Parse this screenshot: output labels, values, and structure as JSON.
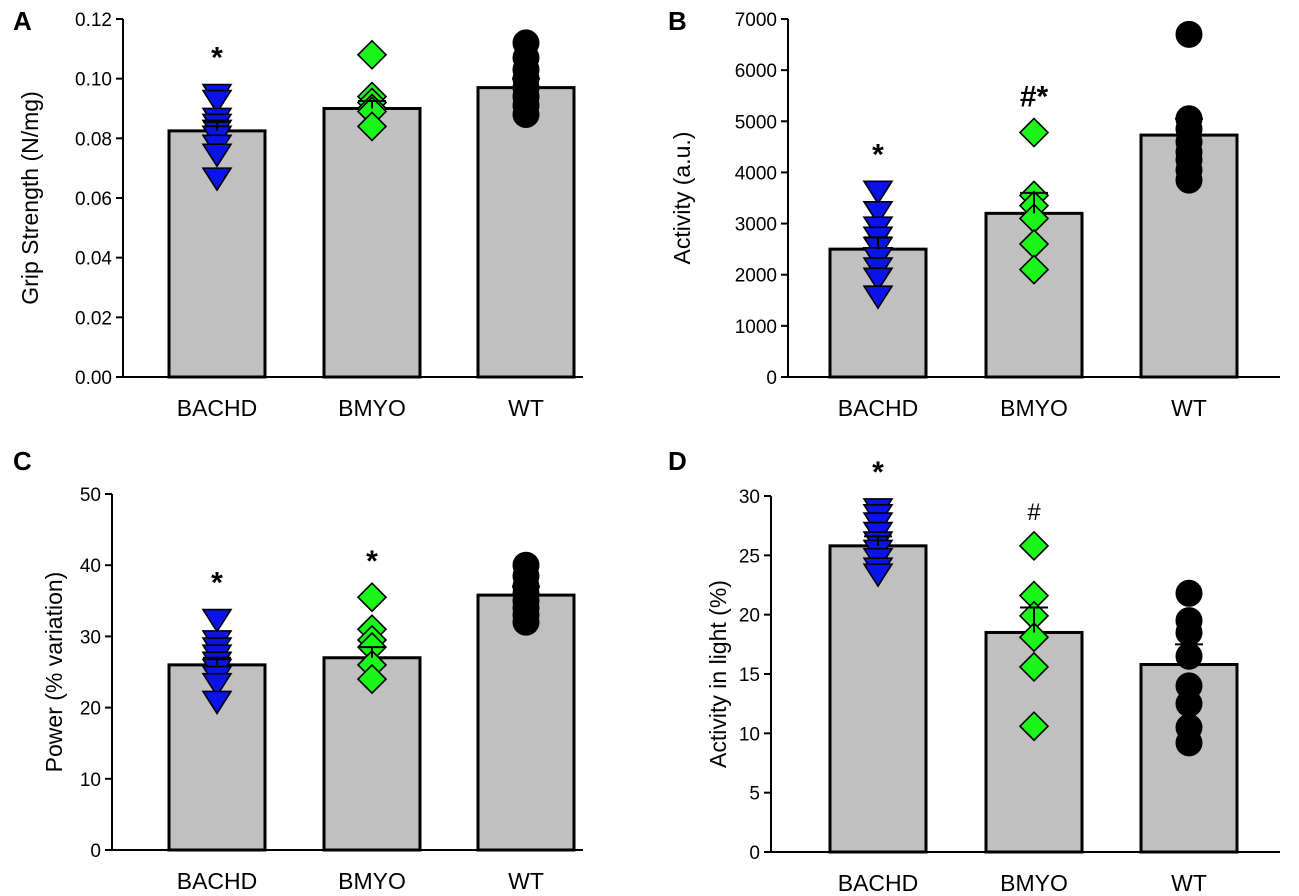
{
  "figure": {
    "categories": [
      "BACHD",
      "BMYO",
      "WT"
    ],
    "colors": {
      "bar": "#c0c0c0",
      "BACHD": "#0a14e6",
      "BMYO": "#1af51a",
      "WT": "#000000"
    }
  },
  "chart_data": [
    {
      "panel": "A",
      "type": "bar",
      "title": "",
      "xlabel": "",
      "ylabel": "Grip Strength (N/mg)",
      "ylim": [
        0,
        0.12
      ],
      "yticks": [
        "0.00",
        "0.02",
        "0.04",
        "0.06",
        "0.08",
        "0.10",
        "0.12"
      ],
      "ytick_values": [
        0,
        0.02,
        0.04,
        0.06,
        0.08,
        0.1,
        0.12
      ],
      "categories": [
        "BACHD",
        "BMYO",
        "WT"
      ],
      "values": [
        0.0825,
        0.09,
        0.097
      ],
      "sem": [
        0.003,
        0.0025,
        0.003
      ],
      "points": [
        [
          0.095,
          0.093,
          0.087,
          0.085,
          0.083,
          0.081,
          0.078,
          0.075,
          0.067
        ],
        [
          0.108,
          0.094,
          0.092,
          0.09,
          0.089,
          0.084
        ],
        [
          0.112,
          0.107,
          0.103,
          0.1,
          0.097,
          0.094,
          0.091,
          0.088
        ]
      ],
      "annotations": [
        "*",
        "",
        ""
      ]
    },
    {
      "panel": "B",
      "type": "bar",
      "title": "",
      "xlabel": "",
      "ylabel": "Activity (a.u.)",
      "ylim": [
        0,
        7000
      ],
      "yticks": [
        "0",
        "1000",
        "2000",
        "3000",
        "4000",
        "5000",
        "6000",
        "7000"
      ],
      "ytick_values": [
        0,
        1000,
        2000,
        3000,
        4000,
        5000,
        6000,
        7000
      ],
      "categories": [
        "BACHD",
        "BMYO",
        "WT"
      ],
      "values": [
        2500,
        3200,
        4730
      ],
      "sem": [
        230,
        400,
        320
      ],
      "points": [
        [
          3650,
          3250,
          2950,
          2750,
          2550,
          2350,
          2150,
          1950,
          1600
        ],
        [
          4780,
          3550,
          3350,
          3100,
          2600,
          2100
        ],
        [
          6700,
          5050,
          4850,
          4600,
          4400,
          4250,
          4050,
          3850
        ]
      ],
      "annotations": [
        "*",
        "#*",
        ""
      ]
    },
    {
      "panel": "C",
      "type": "bar",
      "title": "",
      "xlabel": "",
      "ylabel": "Power (% variation)",
      "ylim": [
        0,
        50
      ],
      "yticks": [
        "0",
        "10",
        "20",
        "30",
        "40",
        "50"
      ],
      "ytick_values": [
        0,
        10,
        20,
        30,
        40,
        50
      ],
      "categories": [
        "BACHD",
        "BMYO",
        "WT"
      ],
      "values": [
        26,
        27,
        35.8
      ],
      "sem": [
        1.0,
        1.5,
        1.2
      ],
      "points": [
        [
          32.5,
          29.5,
          28.5,
          27.5,
          26.5,
          25.5,
          24.5,
          23.5,
          21.0
        ],
        [
          35.5,
          31.0,
          29.5,
          28.5,
          26.0,
          24.0
        ],
        [
          40.0,
          38.5,
          37.0,
          36.0,
          35.0,
          34.0,
          33.0,
          32.0
        ]
      ],
      "annotations": [
        "*",
        "*",
        ""
      ]
    },
    {
      "panel": "D",
      "type": "bar",
      "title": "",
      "xlabel": "",
      "ylabel": "Activity in light (%)",
      "ylim": [
        0,
        30
      ],
      "yticks": [
        "0",
        "5",
        "10",
        "15",
        "20",
        "25",
        "30"
      ],
      "ytick_values": [
        0,
        5,
        10,
        15,
        20,
        25,
        30
      ],
      "categories": [
        "BACHD",
        "BMYO",
        "WT"
      ],
      "values": [
        25.8,
        18.5,
        15.8
      ],
      "sem": [
        0.8,
        2.1,
        1.7
      ],
      "points": [
        [
          29.0,
          28.5,
          27.8,
          27.0,
          26.2,
          25.5,
          24.8,
          24.0,
          23.5
        ],
        [
          25.8,
          21.6,
          19.9,
          18.1,
          15.6,
          10.6
        ],
        [
          21.8,
          19.5,
          18.5,
          16.5,
          14.0,
          12.5,
          10.5,
          9.2
        ]
      ],
      "annotations": [
        "*",
        "#",
        ""
      ]
    }
  ]
}
